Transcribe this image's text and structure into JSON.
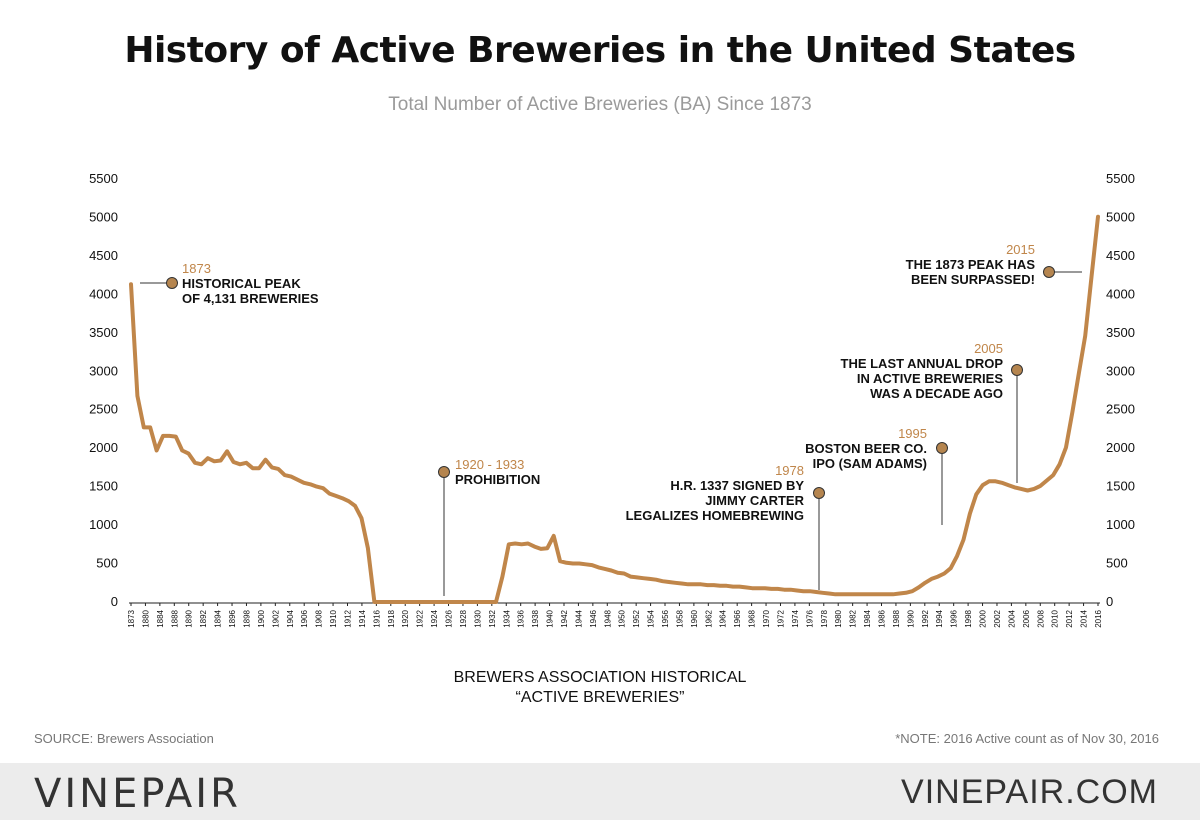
{
  "header": {
    "title": "History of Active Breweries in the United States",
    "subtitle": "Total Number of Active Breweries (BA) Since 1873"
  },
  "footer": {
    "source": "SOURCE: Brewers Association",
    "note": "*NOTE: 2016 Active count as of Nov 30, 2016",
    "brand": "VINEPAIR",
    "site": "VINEPAIR.COM"
  },
  "colors": {
    "line": "#c0864a",
    "annotation_year": "#c0864a",
    "marker": "#b5854f",
    "text": "#111111",
    "footer_bg": "#ececec"
  },
  "chart_data": {
    "type": "line",
    "title": "History of Active Breweries in the United States",
    "subtitle": "Total Number of Active Breweries (BA) Since 1873",
    "xlabel": "BREWERS ASSOCIATION HISTORICAL\n“ACTIVE BREWERIES”",
    "ylabel": "",
    "ylim": [
      0,
      5500
    ],
    "yticks": [
      0,
      500,
      1000,
      1500,
      2000,
      2500,
      3000,
      3500,
      4000,
      4500,
      5000,
      5500
    ],
    "y_axis_both_sides": true,
    "grid": false,
    "x_tick_labels": [
      "1873",
      "1880",
      "1884",
      "1888",
      "1890",
      "1892",
      "1894",
      "1896",
      "1898",
      "1900",
      "1902",
      "1904",
      "1906",
      "1908",
      "1910",
      "1912",
      "1914",
      "1916",
      "1918",
      "1920",
      "1922",
      "1924",
      "1926",
      "1928",
      "1930",
      "1932",
      "1934",
      "1936",
      "1938",
      "1940",
      "1942",
      "1944",
      "1946",
      "1948",
      "1950",
      "1952",
      "1954",
      "1956",
      "1958",
      "1960",
      "1962",
      "1964",
      "1966",
      "1968",
      "1970",
      "1972",
      "1974",
      "1976",
      "1978",
      "1980",
      "1982",
      "1984",
      "1986",
      "1988",
      "1990",
      "1992",
      "1994",
      "1996",
      "1998",
      "2000",
      "2002",
      "2004",
      "2006",
      "2008",
      "2010",
      "2012",
      "2014",
      "2016"
    ],
    "series": [
      {
        "values": [
          4131,
          2680,
          2270,
          2270,
          1970,
          2160,
          2160,
          2150,
          1970,
          1930,
          1810,
          1790,
          1870,
          1830,
          1840,
          1960,
          1820,
          1790,
          1810,
          1740,
          1740,
          1850,
          1750,
          1730,
          1650,
          1630,
          1590,
          1550,
          1530,
          1500,
          1480,
          1410,
          1380,
          1350,
          1310,
          1250,
          1090,
          700,
          0,
          0,
          0,
          0,
          0,
          0,
          0,
          0,
          0,
          0,
          0,
          0,
          0,
          0,
          0,
          0,
          0,
          0,
          0,
          0,
          330,
          750,
          760,
          750,
          760,
          720,
          690,
          700,
          860,
          530,
          510,
          500,
          500,
          490,
          480,
          450,
          430,
          410,
          380,
          370,
          330,
          320,
          310,
          300,
          290,
          270,
          260,
          250,
          240,
          230,
          230,
          230,
          220,
          220,
          210,
          210,
          200,
          200,
          190,
          180,
          180,
          180,
          170,
          170,
          160,
          160,
          150,
          140,
          140,
          130,
          120,
          110,
          100,
          100,
          100,
          100,
          100,
          100,
          100,
          100,
          100,
          100,
          110,
          120,
          140,
          190,
          250,
          300,
          330,
          370,
          440,
          600,
          810,
          1150,
          1400,
          1520,
          1570,
          1570,
          1550,
          1520,
          1490,
          1470,
          1450,
          1470,
          1510,
          1580,
          1650,
          1790,
          2010,
          2470,
          2970,
          3460,
          4240,
          5010
        ]
      }
    ],
    "annotations": [
      {
        "year": "1873",
        "text": [
          "HISTORICAL PEAK",
          "OF 4,131 BREWERIES"
        ]
      },
      {
        "year": "1920 - 1933",
        "text": [
          "PROHIBITION"
        ]
      },
      {
        "year": "1978",
        "text": [
          "H.R. 1337 SIGNED BY",
          "JIMMY CARTER",
          "LEGALIZES HOMEBREWING"
        ]
      },
      {
        "year": "1995",
        "text": [
          "BOSTON BEER CO.",
          "IPO (SAM ADAMS)"
        ]
      },
      {
        "year": "2005",
        "text": [
          "THE LAST ANNUAL DROP",
          "IN ACTIVE BREWERIES",
          "WAS A DECADE AGO"
        ]
      },
      {
        "year": "2015",
        "text": [
          "THE 1873 PEAK HAS",
          "BEEN SURPASSED!"
        ]
      }
    ]
  }
}
